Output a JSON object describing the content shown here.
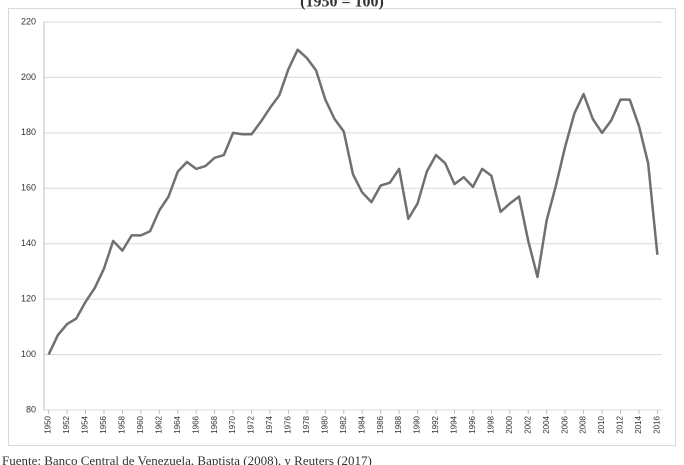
{
  "chart_data": {
    "type": "line",
    "title": "(1950 = 100)",
    "source": "Fuente: Banco Central de Venezuela, Baptista (2008), y Reuters (2017)",
    "x": [
      1950,
      1951,
      1952,
      1953,
      1954,
      1955,
      1956,
      1957,
      1958,
      1959,
      1960,
      1961,
      1962,
      1963,
      1964,
      1965,
      1966,
      1967,
      1968,
      1969,
      1970,
      1971,
      1972,
      1973,
      1974,
      1975,
      1976,
      1977,
      1978,
      1979,
      1980,
      1981,
      1982,
      1983,
      1984,
      1985,
      1986,
      1987,
      1988,
      1989,
      1990,
      1991,
      1992,
      1993,
      1994,
      1995,
      1996,
      1997,
      1998,
      1999,
      2000,
      2001,
      2002,
      2003,
      2004,
      2005,
      2006,
      2007,
      2008,
      2009,
      2010,
      2011,
      2012,
      2013,
      2014,
      2015,
      2016
    ],
    "values": [
      100,
      107,
      111,
      113,
      119,
      124,
      131,
      141,
      137.5,
      143,
      143,
      144.5,
      152,
      157,
      166,
      169.5,
      167,
      168,
      171,
      172,
      180,
      179.5,
      179.5,
      184,
      189,
      193.5,
      203,
      210,
      207,
      202.5,
      192,
      185,
      180.5,
      165,
      158.5,
      155,
      161,
      162,
      167,
      149,
      154.5,
      166,
      172,
      169,
      161.5,
      164,
      160.5,
      167,
      164.5,
      151.5,
      154.5,
      157,
      141,
      128,
      148.5,
      161,
      175,
      187,
      194,
      185,
      180,
      184.5,
      192,
      192,
      182.5,
      169,
      136
    ],
    "color": "#707070",
    "xlim": [
      1949.5,
      2016.5
    ],
    "xticks": [
      1950,
      1952,
      1954,
      1956,
      1958,
      1960,
      1962,
      1964,
      1966,
      1968,
      1970,
      1972,
      1974,
      1976,
      1978,
      1980,
      1982,
      1984,
      1986,
      1988,
      1990,
      1992,
      1994,
      1996,
      1998,
      2000,
      2002,
      2004,
      2006,
      2008,
      2010,
      2012,
      2014,
      2016
    ],
    "ylim": [
      80,
      220
    ],
    "yticks": [
      80,
      100,
      120,
      140,
      160,
      180,
      200,
      220
    ],
    "grid": true
  }
}
